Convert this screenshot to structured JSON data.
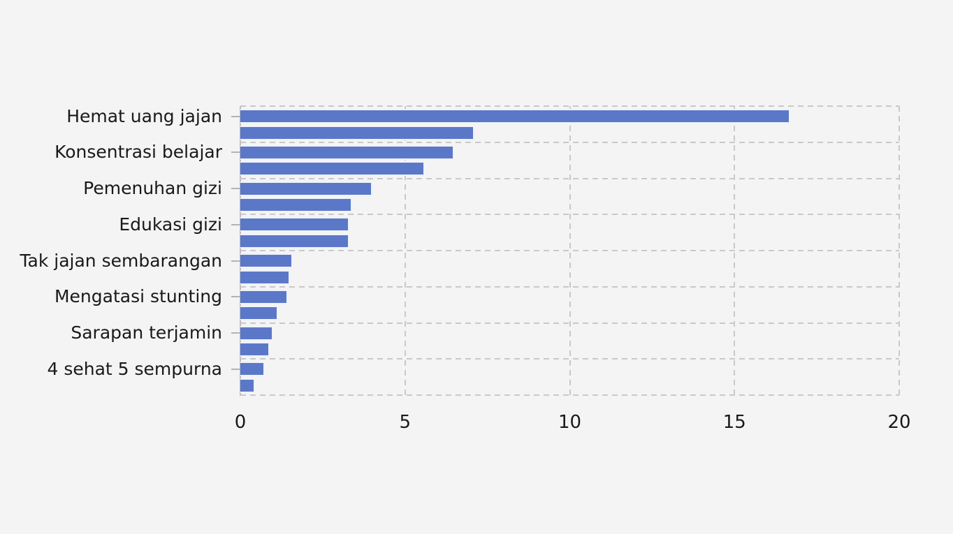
{
  "colors": {
    "background": "#f4f4f4",
    "bar": "#5b78c8",
    "grid": "#c9c9c9",
    "spine": "#bdbdbd",
    "tick": "#b3b3b3",
    "text": "#191919"
  },
  "chart_data": {
    "type": "bar",
    "orientation": "horizontal",
    "title": "",
    "xlabel": "",
    "ylabel": "",
    "xlim": [
      0,
      20
    ],
    "x_ticks": [
      0,
      5,
      10,
      15,
      20
    ],
    "grid": "dashed",
    "legend_position": "none",
    "categories": [
      "Hemat uang jajan",
      "Konsentrasi belajar",
      "Pemenuhan gizi",
      "Edukasi gizi",
      "Tak jajan sembarangan",
      "Mengatasi stunting",
      "Sarapan terjamin",
      "4 sehat 5 sempurna"
    ],
    "series": [
      {
        "name": "series-1",
        "values": [
          16.7,
          6.5,
          4.0,
          3.3,
          1.6,
          1.45,
          1.0,
          0.75
        ]
      },
      {
        "name": "series-2",
        "values": [
          7.1,
          5.6,
          3.4,
          3.3,
          1.5,
          1.15,
          0.9,
          0.45
        ]
      }
    ]
  }
}
